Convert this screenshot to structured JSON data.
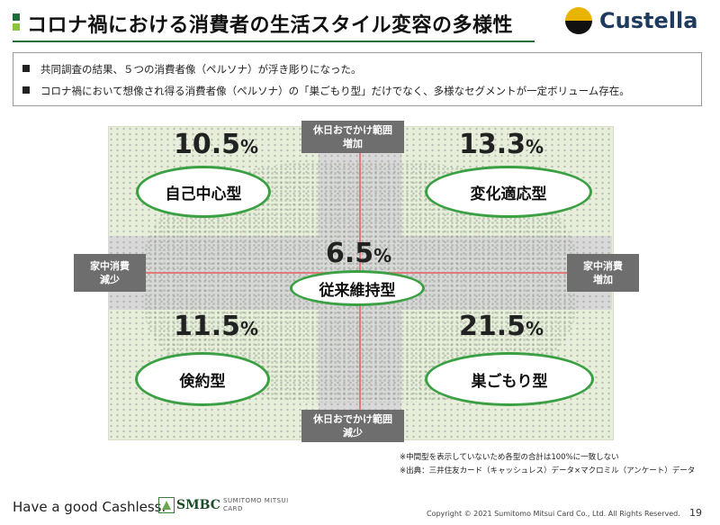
{
  "header": {
    "title": "コロナ禍における消費者の生活スタイル変容の多様性",
    "logo_text": "Custella"
  },
  "summary": {
    "bullets": [
      "共同調査の結果、５つの消費者像（ペルソナ）が浮き彫りになった。",
      "コロナ禍において想像され得る消費者像（ペルソナ）の「巣ごもり型」だけでなく、多様なセグメントが一定ボリューム存在。"
    ]
  },
  "chart": {
    "axis_labels": {
      "top": [
        "休日おでかけ範囲",
        "増加"
      ],
      "bottom": [
        "休日おでかけ範囲",
        "減少"
      ],
      "left": [
        "家中消費",
        "減少"
      ],
      "right": [
        "家中消費",
        "増加"
      ]
    },
    "segments": [
      {
        "name": "自己中心型",
        "value": "10.5",
        "unit": "%"
      },
      {
        "name": "変化適応型",
        "value": "13.3",
        "unit": "%"
      },
      {
        "name": "従来維持型",
        "value": "6.5",
        "unit": "%"
      },
      {
        "name": "倹約型",
        "value": "11.5",
        "unit": "%"
      },
      {
        "name": "巣ごもり型",
        "value": "21.5",
        "unit": "%"
      }
    ]
  },
  "notes": [
    "※中間型を表示していないため各型の合計は100%に一致しない",
    "※出典：三井住友カード（キャッシュレス）データ×マクロミル（アンケート）データ"
  ],
  "footer": {
    "tagline": "Have a good Cashless.",
    "brand": "SMBC",
    "brand_sub_1": "SUMITOMO MITSUI",
    "brand_sub_2": "CARD",
    "copyright": "Copyright © 2021 Sumitomo Mitsui Card Co., Ltd. All Rights Reserved.",
    "page": "19"
  },
  "colors": {
    "accent_green": "#3aa043",
    "dark_green": "#1f6b3a",
    "axis_red": "#e27a7a",
    "label_gray": "#6e6e6e"
  }
}
